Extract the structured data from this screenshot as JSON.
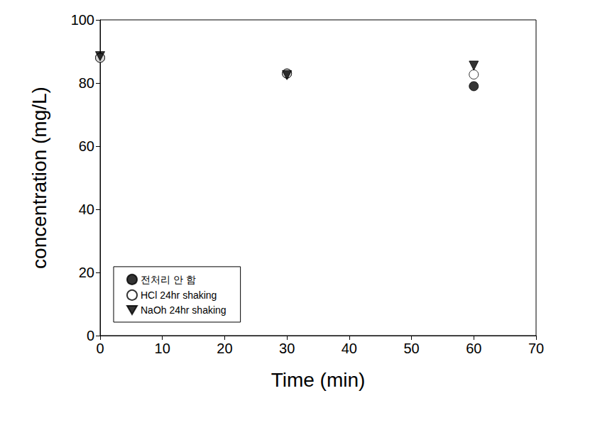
{
  "chart_data": {
    "type": "scatter",
    "x_label": "Time (min)",
    "y_label": "concentration (mg/L)",
    "x": [
      0,
      30,
      60
    ],
    "series": [
      {
        "name": "전처리 안 함",
        "color": "#000000",
        "marker": "circle",
        "values": [
          88,
          83,
          79
        ]
      },
      {
        "name": "HCl 24hr shaking",
        "color": "#000000",
        "marker": "circle_open",
        "values": [
          88,
          83,
          82.7
        ]
      },
      {
        "name": "NaOh 24hr shaking",
        "color": "#000000",
        "marker": "triangle_down",
        "values": [
          88.5,
          82.5,
          85.5
        ]
      }
    ],
    "xlim": [
      0,
      70
    ],
    "xticks": [
      0,
      10,
      20,
      30,
      40,
      50,
      60,
      70
    ],
    "ylim": [
      0,
      100
    ],
    "yticks": [
      0,
      20,
      40,
      60,
      80,
      100
    ],
    "grid": false,
    "legend": "lower left"
  }
}
